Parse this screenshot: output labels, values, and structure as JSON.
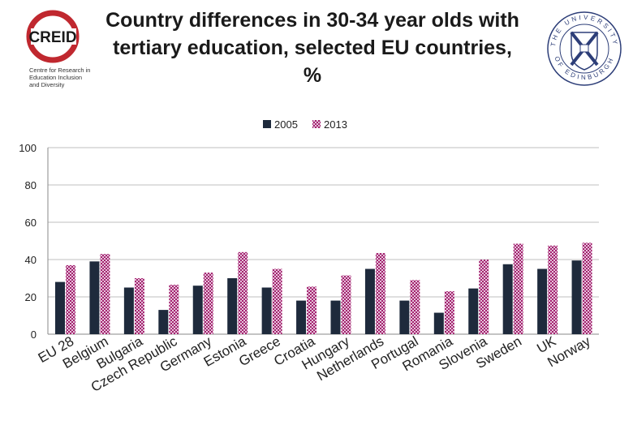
{
  "header": {
    "title": "Country differences in 30-34 year olds with tertiary education, selected EU countries, %",
    "left_logo": {
      "name": "CREID",
      "caption_lines": [
        "Centre for Research in",
        "Education Inclusion",
        "and Diversity"
      ],
      "color": "#c0282f"
    },
    "right_logo": {
      "ring_top": "THE UNIVERSITY",
      "ring_bottom": "OF EDINBURGH",
      "color": "#2d3e78"
    }
  },
  "colors": {
    "series_2005": "#1e2a3c",
    "series_2013": "#a3236e",
    "series_2013_light": "#e6c3dc",
    "grid": "#bfbfbf"
  },
  "chart_data": {
    "type": "bar",
    "title": "Country differences in 30-34 year olds with tertiary education, selected EU countries, %",
    "xlabel": "",
    "ylabel": "",
    "ylim": [
      0,
      100
    ],
    "yticks": [
      0,
      20,
      40,
      60,
      80,
      100
    ],
    "grid": true,
    "legend": "top-center",
    "categories": [
      "EU 28",
      "Belgium",
      "Bulgaria",
      "Czech Republic",
      "Germany",
      "Estonia",
      "Greece",
      "Croatia",
      "Hungary",
      "Netherlands",
      "Portugal",
      "Romania",
      "Slovenia",
      "Sweden",
      "UK",
      "Norway"
    ],
    "series": [
      {
        "name": "2005",
        "values": [
          28,
          39,
          25,
          13,
          26,
          30,
          25,
          18,
          18,
          35,
          18,
          11.5,
          24.5,
          37.5,
          35,
          39.5
        ]
      },
      {
        "name": "2013",
        "values": [
          37,
          43,
          30,
          26.5,
          33,
          44,
          35,
          25.5,
          31.5,
          43.5,
          29,
          23,
          40,
          48.5,
          47.5,
          49
        ]
      }
    ]
  }
}
